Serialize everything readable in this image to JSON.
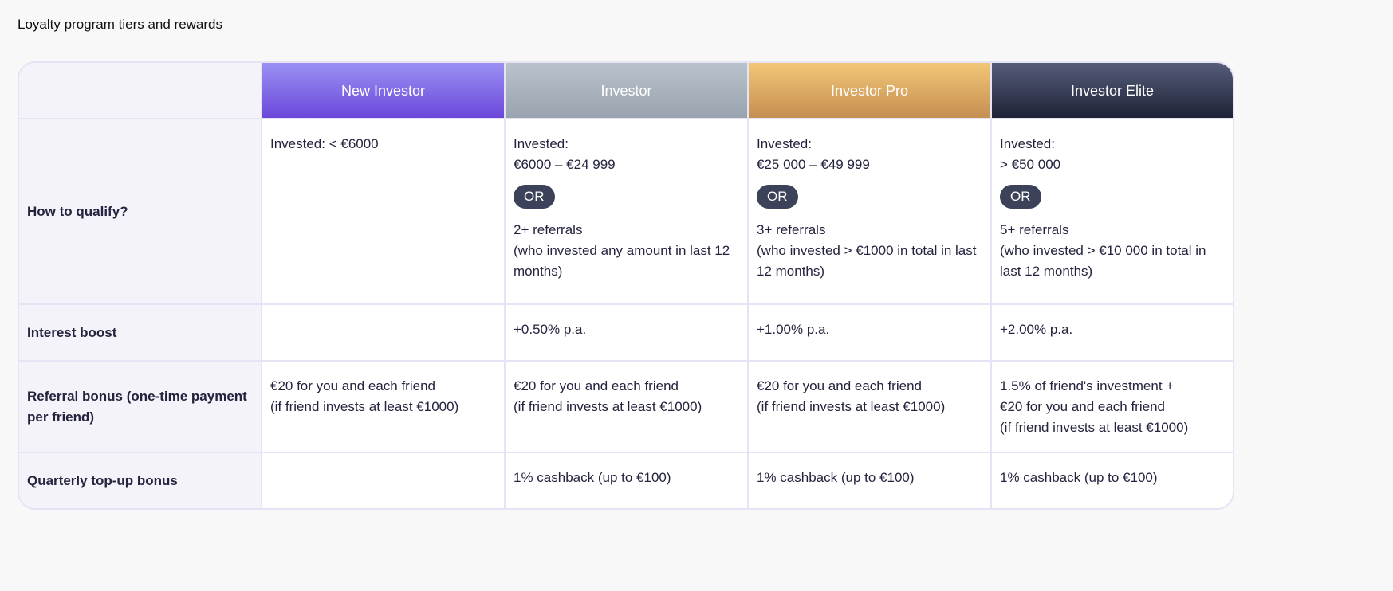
{
  "title": "Loyalty program tiers and rewards",
  "tiers": [
    {
      "name": "New Investor",
      "color": "#6c47db"
    },
    {
      "name": "Investor",
      "color": "#98a3ae"
    },
    {
      "name": "Investor Pro",
      "color": "#c58f52"
    },
    {
      "name": "Investor Elite",
      "color": "#1e2236"
    }
  ],
  "rows": {
    "qualify": {
      "label": "How to qualify?",
      "cells": [
        {
          "invested": "Invested: < €6000"
        },
        {
          "invested": "Invested:",
          "range": "€6000 – €24 999",
          "or": "OR",
          "referrals": "2+ referrals",
          "note": "(who invested any amount in last 12 months)"
        },
        {
          "invested": "Invested:",
          "range": "€25 000 – €49 999",
          "or": "OR",
          "referrals": "3+ referrals",
          "note": "(who invested > €1000 in total in last 12 months)"
        },
        {
          "invested": "Invested:",
          "range": "> €50 000",
          "or": "OR",
          "referrals": "5+ referrals",
          "note": "(who invested > €10 000 in total in last 12 months)"
        }
      ]
    },
    "interest": {
      "label": "Interest boost",
      "cells": [
        "",
        "+0.50% p.a.",
        "+1.00% p.a.",
        "+2.00% p.a."
      ]
    },
    "referral": {
      "label": "Referral bonus (one-time payment per friend)",
      "cells": [
        {
          "l1": "",
          "l2": "€20 for you and each friend",
          "l3": "(if friend invests at least €1000)"
        },
        {
          "l1": "",
          "l2": "€20 for you and each friend",
          "l3": "(if friend invests at least €1000)"
        },
        {
          "l1": "",
          "l2": "€20 for you and each friend",
          "l3": "(if friend invests at least €1000)"
        },
        {
          "l1": "1.5% of friend's investment +",
          "l2": "€20 for you and each friend",
          "l3": "(if friend invests at least €1000)"
        }
      ]
    },
    "quarterly": {
      "label": "Quarterly top-up bonus",
      "cells": [
        "",
        "1% cashback (up to €100)",
        "1% cashback (up to €100)",
        "1% cashback (up to €100)"
      ]
    }
  }
}
